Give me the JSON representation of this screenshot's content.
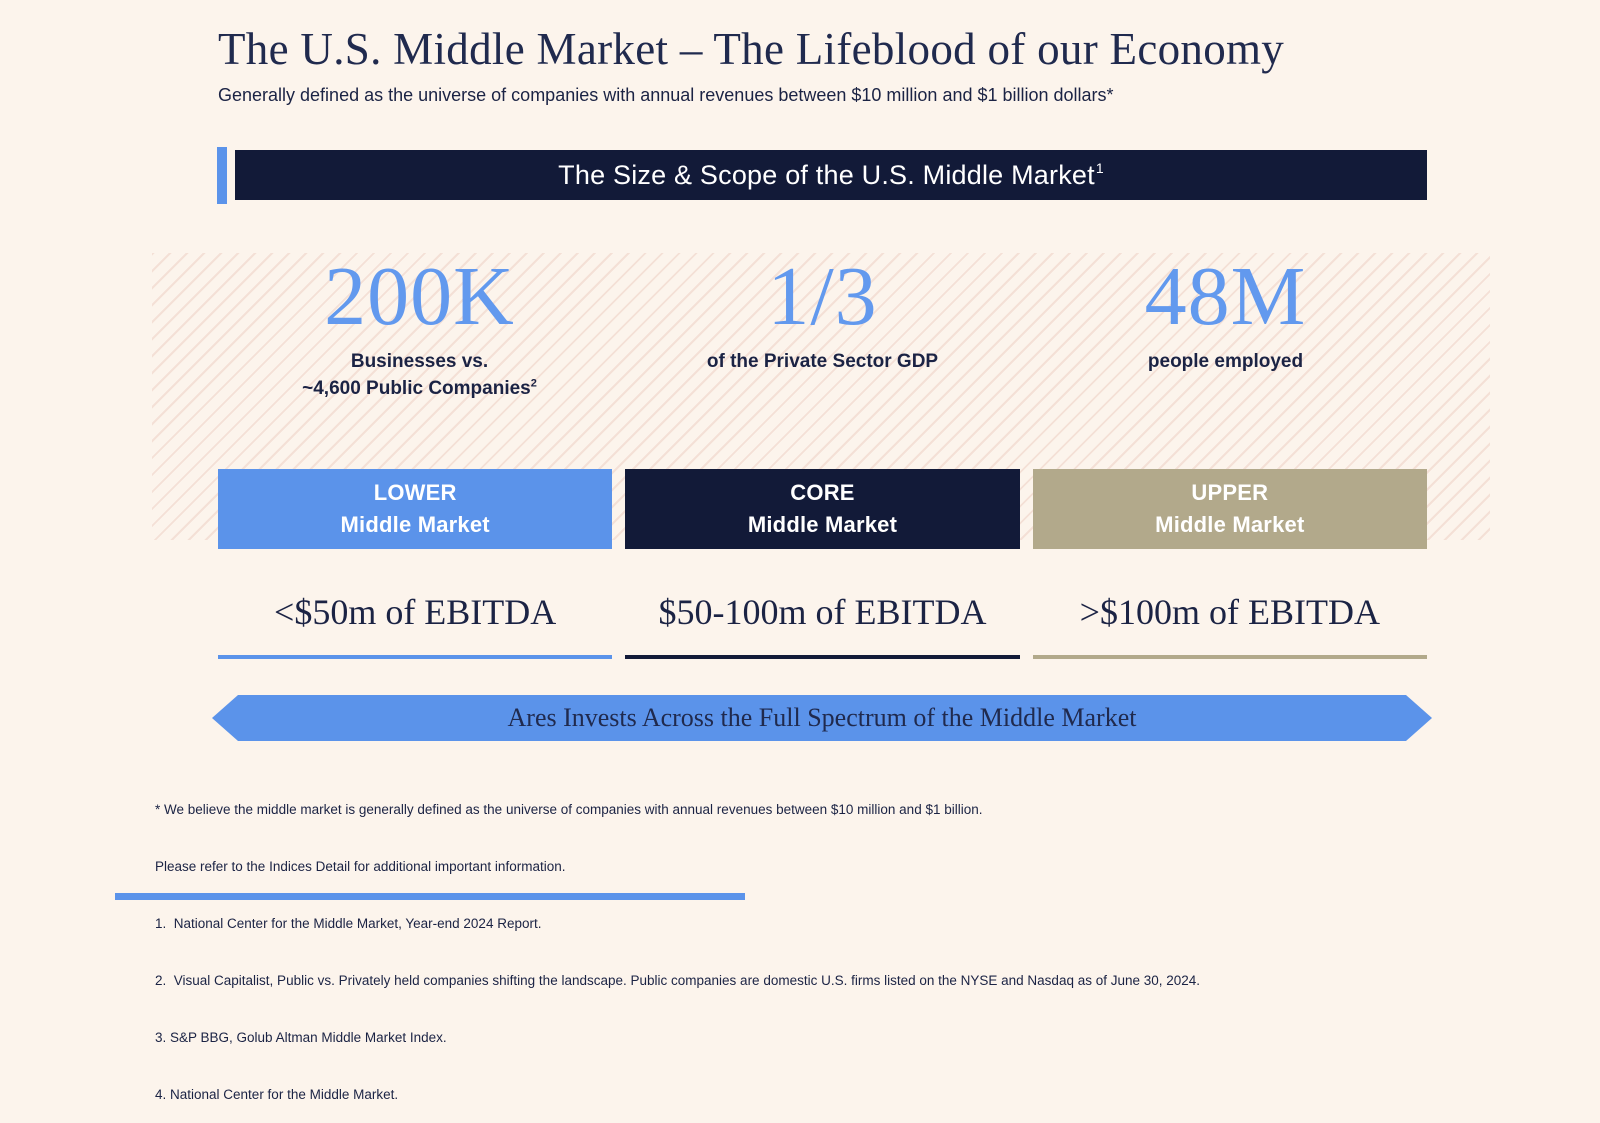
{
  "header": {
    "title": "The U.S. Middle Market – The Lifeblood of our Economy",
    "subtitle": "Generally defined as the universe of companies with annual revenues between $10 million and $1 billion dollars*"
  },
  "banner": {
    "title": "The Size & Scope of the U.S. Middle Market",
    "footnote_ref": "1"
  },
  "stats": [
    {
      "value": "200K",
      "line1": "Businesses vs.",
      "line2": "~4,600 Public Companies",
      "footnote_ref": "2"
    },
    {
      "value": "1/3",
      "line1": "of the Private Sector GDP"
    },
    {
      "value": "48M",
      "line1": "people employed"
    }
  ],
  "segments": [
    {
      "tier": "LOWER",
      "name": "Middle Market",
      "ebitda": "<$50m of EBITDA",
      "color": "#5B93EA"
    },
    {
      "tier": "CORE",
      "name": "Middle Market",
      "ebitda": "$50-100m of EBITDA",
      "color": "#121A38"
    },
    {
      "tier": "UPPER",
      "name": "Middle Market",
      "ebitda": ">$100m of EBITDA",
      "color": "#B2A98B"
    }
  ],
  "arrow": {
    "text": "Ares Invests Across the Full Spectrum of the Middle Market"
  },
  "footnotes": [
    "* We believe the middle market is generally defined as the universe of companies with annual revenues between $10 million and $1 billion.",
    "Please refer to the Indices Detail for additional important information.",
    "1.  National Center for the Middle Market, Year-end 2024 Report.",
    "2.  Visual Capitalist, Public vs. Privately held companies shifting the landscape. Public companies are domestic U.S. firms listed on the NYSE and Nasdaq as of June 30, 2024.",
    "3. S&P BBG, Golub Altman Middle Market Index.",
    "4. National Center for the Middle Market."
  ],
  "colors": {
    "background": "#FCF4EC",
    "navy": "#121A38",
    "title_navy": "#202A4E",
    "text_navy": "#1B2344",
    "blue": "#5B93EA",
    "stat_blue": "#6299EE",
    "tan": "#B2A98B",
    "hatch_line": "#F3DCD2"
  }
}
